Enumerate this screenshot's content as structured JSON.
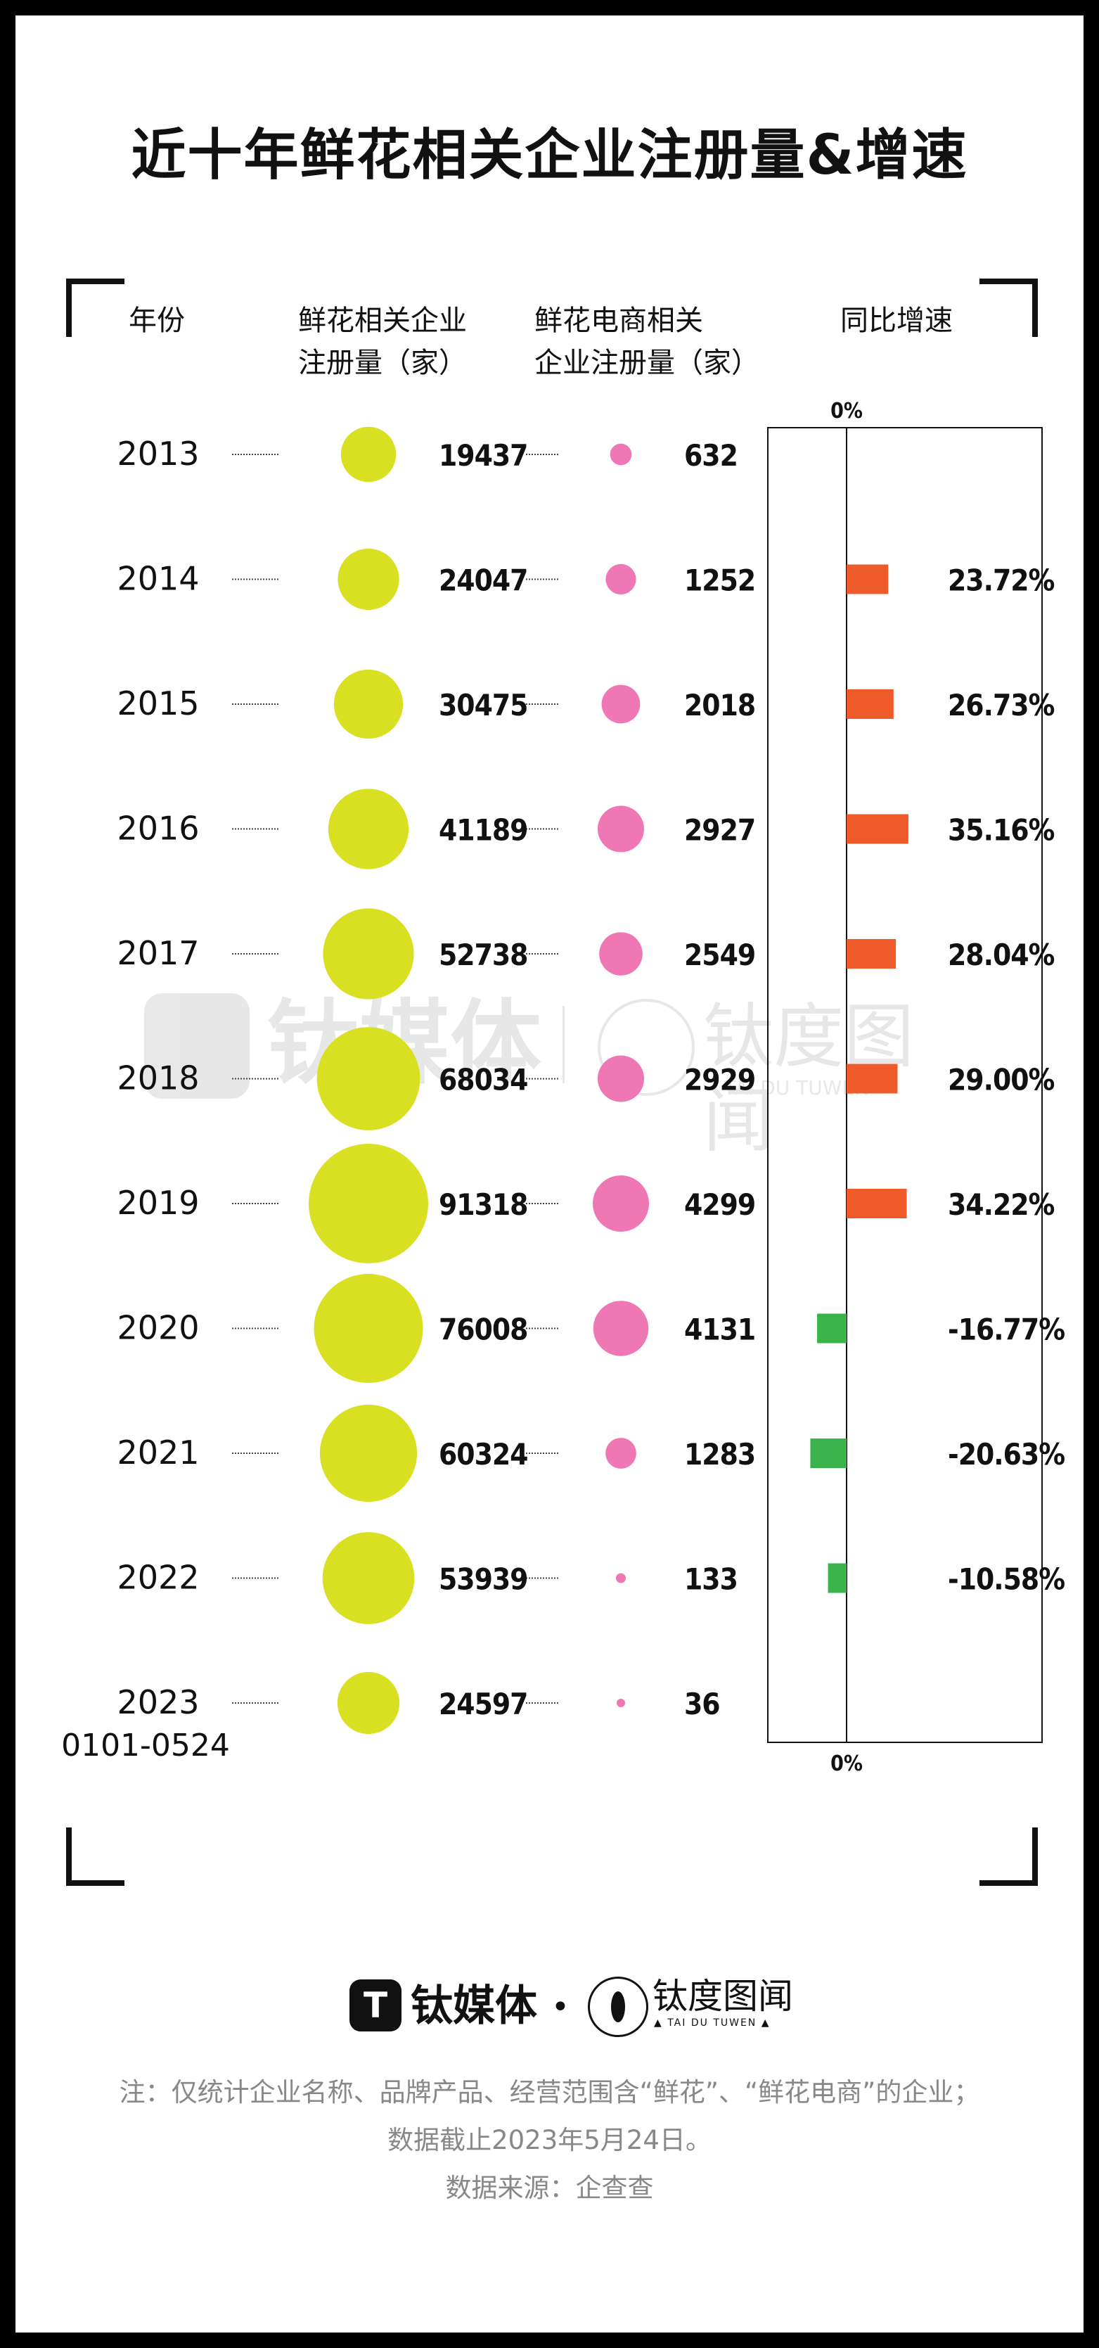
{
  "title": "近十年鲜花相关企业注册量&增速",
  "headers": {
    "year": "年份",
    "col1": [
      "鲜花相关企业",
      "注册量（家）"
    ],
    "col2": [
      "鲜花电商相关",
      "企业注册量（家）"
    ],
    "col3": "同比增速"
  },
  "chart_data": {
    "type": "table",
    "zero_label": "0%",
    "years": [
      "2013",
      "2014",
      "2015",
      "2016",
      "2017",
      "2018",
      "2019",
      "2020",
      "2021",
      "2022",
      "2023"
    ],
    "year_sublabels": [
      "",
      "",
      "",
      "",
      "",
      "",
      "",
      "",
      "",
      "",
      "0101-0524"
    ],
    "series": [
      {
        "name": "鲜花相关企业注册量（家）",
        "color": "#d8e021",
        "values": [
          19437,
          24047,
          30475,
          41189,
          52738,
          68034,
          91318,
          76008,
          60324,
          53939,
          24597
        ]
      },
      {
        "name": "鲜花电商相关企业注册量（家）",
        "color": "#ef78b4",
        "values": [
          632,
          1252,
          2018,
          2927,
          2549,
          2929,
          4299,
          4131,
          1283,
          133,
          36
        ]
      },
      {
        "name": "同比增速",
        "positive_color": "#ef5a2a",
        "negative_color": "#3ab44a",
        "values": [
          null,
          23.72,
          26.73,
          35.16,
          28.04,
          29.0,
          34.22,
          -16.77,
          -20.63,
          -10.58,
          null
        ],
        "labels": [
          "",
          "23.72%",
          "26.73%",
          "35.16%",
          "28.04%",
          "29.00%",
          "34.22%",
          "-16.77%",
          "-20.63%",
          "-10.58%",
          ""
        ]
      }
    ]
  },
  "watermark": {
    "brand1": "钛媒体",
    "brand2": "钛度图闻",
    "brand2_sub": "TAI DU TUWEN"
  },
  "footer": {
    "brand1": "钛媒体",
    "brand1_icon": "T",
    "separator": "•",
    "brand2": "钛度图闻",
    "brand2_sub": "▲ TAI DU TUWEN ▲",
    "note_line1": "注：仅统计企业名称、品牌产品、经营范围含“鲜花”、“鲜花电商”的企业；",
    "note_line2": "数据截止2023年5月24日。",
    "source": "数据来源：企查查"
  }
}
